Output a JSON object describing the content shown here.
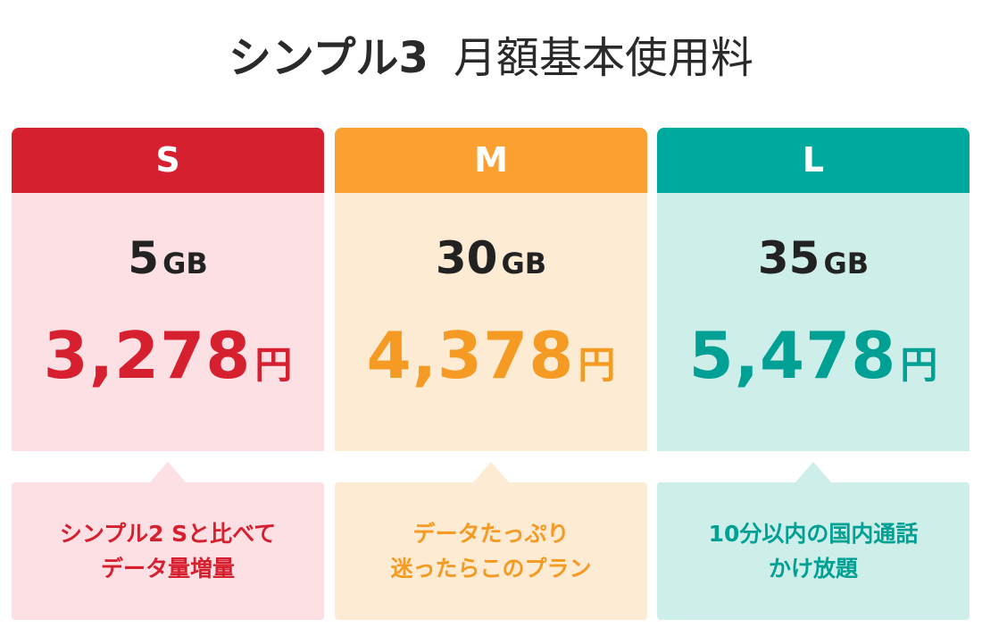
{
  "title": {
    "main": "シンプル3",
    "sub": "月額基本使用料"
  },
  "plans": [
    {
      "name": "S",
      "data": "5",
      "data_unit": "GB",
      "price": "3,278",
      "currency": "円",
      "note": [
        "シンプル2 Sと比べて",
        "データ量増量"
      ]
    },
    {
      "name": "M",
      "data": "30",
      "data_unit": "GB",
      "price": "4,378",
      "currency": "円",
      "note": [
        "データたっぷり",
        "迷ったらこのプラン"
      ]
    },
    {
      "name": "L",
      "data": "35",
      "data_unit": "GB",
      "price": "5,478",
      "currency": "円",
      "note": [
        "10分以内の国内通話",
        "かけ放題"
      ]
    }
  ]
}
